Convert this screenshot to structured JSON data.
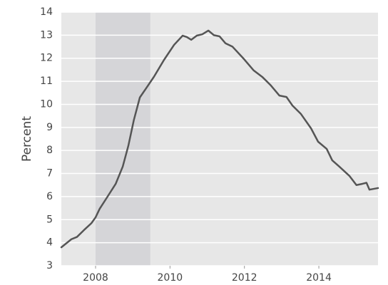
{
  "chart_data": {
    "type": "line",
    "y_label": "Percent",
    "x": [
      2007.08,
      2007.35,
      2007.5,
      2007.69,
      2007.89,
      2008.0,
      2008.11,
      2008.31,
      2008.54,
      2008.73,
      2008.88,
      2009.03,
      2009.19,
      2009.36,
      2009.57,
      2009.84,
      2010.11,
      2010.34,
      2010.45,
      2010.57,
      2010.72,
      2010.87,
      2011.03,
      2011.18,
      2011.33,
      2011.49,
      2011.68,
      2011.99,
      2012.25,
      2012.48,
      2012.71,
      2012.94,
      2013.13,
      2013.29,
      2013.52,
      2013.79,
      2013.98,
      2014.21,
      2014.36,
      2014.55,
      2014.82,
      2015.01,
      2015.16,
      2015.28,
      2015.36,
      2015.59
    ],
    "series": [
      {
        "color": "#555555",
        "values": [
          3.8,
          4.15,
          4.25,
          4.55,
          4.85,
          5.1,
          5.47,
          5.97,
          6.55,
          7.3,
          8.2,
          9.33,
          10.3,
          10.7,
          11.2,
          11.93,
          12.58,
          12.98,
          12.92,
          12.8,
          12.98,
          13.04,
          13.2,
          13.0,
          12.95,
          12.65,
          12.5,
          11.96,
          11.47,
          11.19,
          10.82,
          10.38,
          10.32,
          9.95,
          9.58,
          8.96,
          8.38,
          8.07,
          7.57,
          7.3,
          6.9,
          6.5,
          6.55,
          6.6,
          6.3,
          6.37
        ]
      }
    ],
    "shaded_range": [
      2008.0,
      2009.47
    ],
    "shade_color": "#d5d5d8",
    "xlim": [
      2007.08,
      2015.59
    ],
    "xticks": [
      2008,
      2010,
      2012,
      2014
    ],
    "ylim": [
      3,
      14
    ],
    "yticks": [
      3,
      4,
      5,
      6,
      7,
      8,
      9,
      10,
      11,
      12,
      13,
      14
    ],
    "grid": true,
    "background": "#e7e7e7"
  }
}
